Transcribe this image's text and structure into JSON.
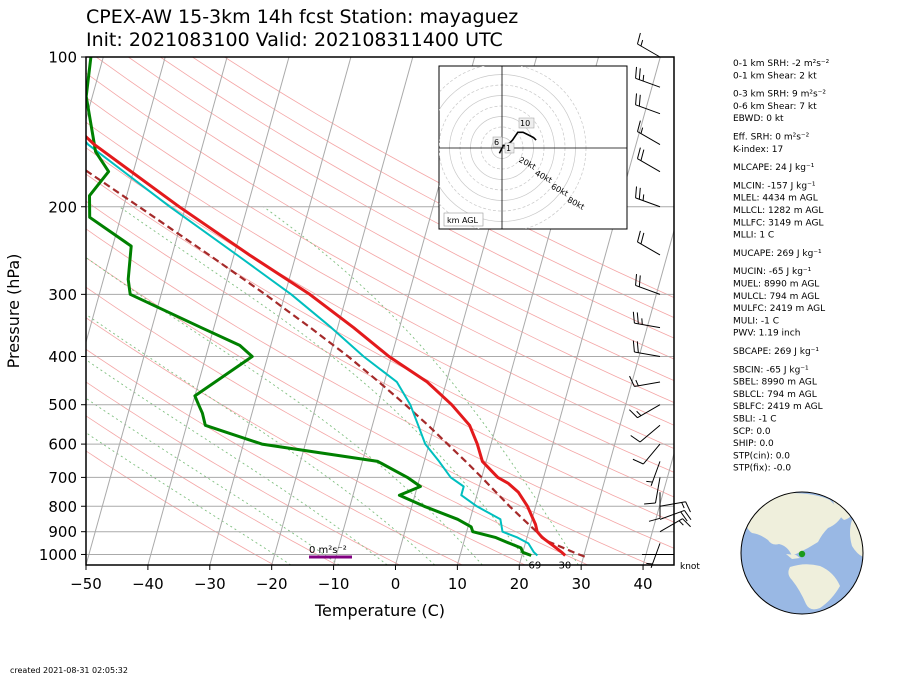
{
  "header": {
    "title_line1": "CPEX-AW 15-3km  14h fcst  Station: mayaguez",
    "title_line2": "Init: 2021083100  Valid: 202108311400 UTC"
  },
  "footer": {
    "created": "created 2021-08-31 02:05:32"
  },
  "colors": {
    "temperature": "#e31a1c",
    "dewpoint": "#008000",
    "wetbulb": "#00bfbf",
    "parcel": "#a52a2a",
    "isotherm": "#aaaaaa",
    "dry_adiabat": "#f4a6a6",
    "moist_adiabat": "#7fbf7f",
    "globe_ocean": "#99b8e4",
    "globe_land": "#efefdc",
    "station_marker": "#1a9a1a"
  },
  "chart_data": {
    "type": "skewt-logp",
    "xlabel": "Temperature (C)",
    "ylabel": "Pressure (hPa)",
    "xlim": [
      -50,
      45
    ],
    "ylim": [
      1050,
      100
    ],
    "skew": 60,
    "x_ticks": [
      "−50",
      "−40",
      "−30",
      "−20",
      "−10",
      "0",
      "10",
      "20",
      "30",
      "40"
    ],
    "x_tick_values": [
      -50,
      -40,
      -30,
      -20,
      -10,
      0,
      10,
      20,
      30,
      40
    ],
    "p_ticks": [
      100,
      200,
      300,
      400,
      500,
      600,
      700,
      800,
      900,
      1000
    ],
    "p_tick_labels": [
      "100",
      "200",
      "300",
      "400",
      "500",
      "600",
      "700",
      "800",
      "900",
      "1000"
    ],
    "isotherms": [
      -110,
      -100,
      -90,
      -80,
      -70,
      -60,
      -50,
      -40,
      -30,
      -20,
      -10,
      0,
      10,
      20,
      30,
      40
    ],
    "dry_adiabats_theta_K": [
      250,
      260,
      270,
      280,
      290,
      300,
      310,
      320,
      330,
      340,
      350,
      360,
      370,
      380,
      390,
      400,
      410,
      420,
      430
    ],
    "moist_adiabats_T1000_C": [
      -20,
      -12,
      -4,
      4,
      12,
      20,
      28
    ],
    "series": [
      {
        "name": "temperature",
        "points": [
          [
            1005,
            27
          ],
          [
            990,
            26.3
          ],
          [
            960,
            24.6
          ],
          [
            925,
            22.5
          ],
          [
            900,
            21.4
          ],
          [
            870,
            20.8
          ],
          [
            850,
            20.2
          ],
          [
            800,
            18.7
          ],
          [
            750,
            16.6
          ],
          [
            720,
            14.6
          ],
          [
            700,
            12.6
          ],
          [
            650,
            9.4
          ],
          [
            600,
            7.8
          ],
          [
            550,
            5.7
          ],
          [
            500,
            1.9
          ],
          [
            450,
            -3.1
          ],
          [
            400,
            -10.4
          ],
          [
            350,
            -17.4
          ],
          [
            300,
            -26
          ],
          [
            250,
            -37.5
          ],
          [
            200,
            -51
          ],
          [
            150,
            -67.5
          ],
          [
            120,
            -78
          ],
          [
            100,
            -83
          ]
        ]
      },
      {
        "name": "dewpoint",
        "points": [
          [
            1005,
            21.5
          ],
          [
            990,
            20
          ],
          [
            970,
            19.5
          ],
          [
            950,
            17.5
          ],
          [
            925,
            15
          ],
          [
            900,
            11
          ],
          [
            880,
            10.5
          ],
          [
            850,
            8
          ],
          [
            800,
            2
          ],
          [
            760,
            -2.5
          ],
          [
            730,
            0.5
          ],
          [
            700,
            -2
          ],
          [
            650,
            -7.5
          ],
          [
            600,
            -27
          ],
          [
            550,
            -37
          ],
          [
            520,
            -38
          ],
          [
            500,
            -39
          ],
          [
            480,
            -40
          ],
          [
            400,
            -32.5
          ],
          [
            380,
            -35
          ],
          [
            350,
            -42
          ],
          [
            300,
            -55
          ],
          [
            280,
            -56
          ],
          [
            240,
            -57
          ],
          [
            210,
            -65
          ],
          [
            190,
            -66
          ],
          [
            170,
            -64
          ],
          [
            155,
            -67
          ],
          [
            120,
            -71
          ],
          [
            100,
            -72
          ]
        ]
      },
      {
        "name": "wetbulb",
        "points": [
          [
            1005,
            22.5
          ],
          [
            990,
            21.8
          ],
          [
            950,
            20.5
          ],
          [
            925,
            18.5
          ],
          [
            900,
            15.8
          ],
          [
            850,
            14.9
          ],
          [
            800,
            10.5
          ],
          [
            760,
            7.5
          ],
          [
            730,
            7.5
          ],
          [
            700,
            5
          ],
          [
            650,
            2.4
          ],
          [
            600,
            -0.6
          ],
          [
            550,
            -2.6
          ],
          [
            500,
            -4.8
          ],
          [
            450,
            -8
          ],
          [
            400,
            -14.5
          ],
          [
            350,
            -21
          ],
          [
            300,
            -29
          ],
          [
            250,
            -39.5
          ],
          [
            200,
            -52.5
          ],
          [
            150,
            -68.5
          ],
          [
            125,
            -76
          ],
          [
            110,
            -76
          ],
          [
            100,
            -74
          ]
        ]
      },
      {
        "name": "parcel",
        "points": [
          [
            1010,
            30.2
          ],
          [
            990,
            28.2
          ],
          [
            960,
            25.4
          ],
          [
            940,
            23.4
          ],
          [
            900,
            21.3
          ],
          [
            850,
            18.6
          ],
          [
            800,
            15.8
          ],
          [
            750,
            13
          ],
          [
            700,
            10
          ],
          [
            650,
            6.7
          ],
          [
            600,
            3
          ],
          [
            550,
            -1
          ],
          [
            500,
            -5.6
          ],
          [
            450,
            -10.9
          ],
          [
            400,
            -17
          ],
          [
            350,
            -24.4
          ],
          [
            300,
            -33.2
          ],
          [
            250,
            -44
          ],
          [
            200,
            -57.5
          ],
          [
            150,
            -75
          ],
          [
            120,
            -88
          ],
          [
            100,
            -97
          ]
        ]
      }
    ],
    "temp_label": "30",
    "dewpoint_label": "69",
    "shear_label": "0 m²s⁻²",
    "wind_units": "knot",
    "winds": [
      {
        "p": 1000,
        "dir": 270,
        "spd": 0
      },
      {
        "p": 950,
        "dir": 200,
        "spd": 5
      },
      {
        "p": 900,
        "dir": 60,
        "spd": 15
      },
      {
        "p": 850,
        "dir": 70,
        "spd": 20
      },
      {
        "p": 800,
        "dir": 80,
        "spd": 15
      },
      {
        "p": 750,
        "dir": 180,
        "spd": 10
      },
      {
        "p": 700,
        "dir": 190,
        "spd": 10
      },
      {
        "p": 650,
        "dir": 200,
        "spd": 5
      },
      {
        "p": 600,
        "dir": 220,
        "spd": 10
      },
      {
        "p": 550,
        "dir": 230,
        "spd": 10
      },
      {
        "p": 500,
        "dir": 240,
        "spd": 15
      },
      {
        "p": 450,
        "dir": 260,
        "spd": 15
      },
      {
        "p": 400,
        "dir": 280,
        "spd": 20
      },
      {
        "p": 350,
        "dir": 280,
        "spd": 25
      },
      {
        "p": 300,
        "dir": 290,
        "spd": 20
      },
      {
        "p": 250,
        "dir": 300,
        "spd": 20
      },
      {
        "p": 200,
        "dir": 290,
        "spd": 25
      },
      {
        "p": 170,
        "dir": 300,
        "spd": 20
      },
      {
        "p": 150,
        "dir": 300,
        "spd": 15
      },
      {
        "p": 130,
        "dir": 290,
        "spd": 20
      },
      {
        "p": 115,
        "dir": 290,
        "spd": 25
      },
      {
        "p": 100,
        "dir": 300,
        "spd": 15
      }
    ],
    "hodograph": {
      "rings_kt": [
        10,
        20,
        30,
        40,
        50,
        60,
        70,
        80
      ],
      "ring_labels": [
        "20kt",
        "40kt",
        "60kt",
        "80kt"
      ],
      "ring_label_values": [
        20,
        40,
        60,
        80
      ],
      "level_labels": [
        "6",
        "1",
        "10"
      ],
      "level_label_km": [
        6,
        1,
        10
      ],
      "legend": "km AGL",
      "points": [
        [
          -1,
          -2
        ],
        [
          0,
          0
        ],
        [
          0.5,
          1
        ],
        [
          2,
          0.5
        ],
        [
          1,
          1
        ],
        [
          3,
          2
        ],
        [
          4,
          3
        ],
        [
          6,
          6
        ],
        [
          8,
          6
        ],
        [
          10,
          5
        ],
        [
          12,
          4
        ],
        [
          13,
          3
        ]
      ]
    },
    "indices": [
      "0-1 km SRH: -2 m²s⁻²",
      "0-1 km Shear: 2 kt",
      "0-3 km SRH: 9 m²s⁻²",
      "0-6 km Shear: 7 kt",
      "EBWD: 0 kt",
      "Eff. SRH: 0 m²s⁻²",
      "K-index: 17",
      "MLCAPE: 24 J kg⁻¹",
      "MLCIN: -157 J kg⁻¹",
      "MLEL: 4434 m AGL",
      "MLLCL: 1282 m AGL",
      "MLLFC: 3149 m AGL",
      "MLLI: 1 C",
      "MUCAPE: 269 J kg⁻¹",
      "MUCIN: -65 J kg⁻¹",
      "MUEL: 8990 m AGL",
      "MULCL: 794 m AGL",
      "MULFC: 2419 m AGL",
      "MULI: -1 C",
      "PWV: 1.19 inch",
      "SBCAPE: 269 J kg⁻¹",
      "SBCIN: -65 J kg⁻¹",
      "SBEL: 8990 m AGL",
      "SBLCL: 794 m AGL",
      "SBLFC: 2419 m AGL",
      "SBLI: -1 C",
      "SCP: 0.0",
      "SHIP: 0.0",
      "STP(cin): 0.0",
      "STP(fix): -0.0"
    ]
  }
}
